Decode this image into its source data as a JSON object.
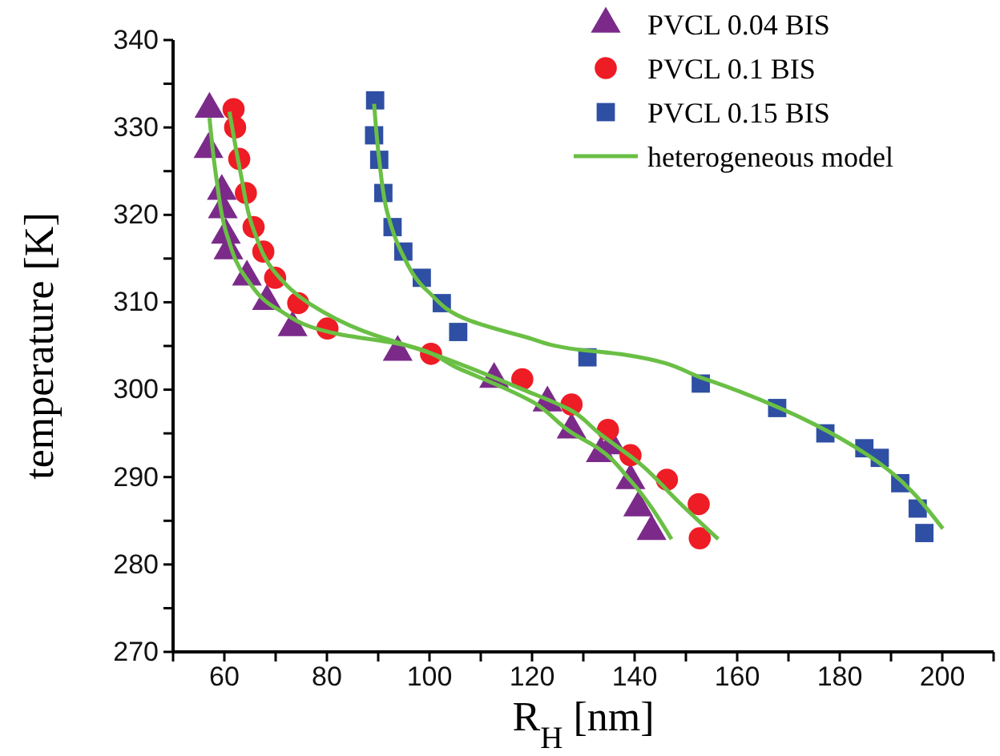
{
  "chart_data": {
    "type": "scatter",
    "xlabel": "R$_{H}$ [nm]",
    "ylabel": "temperature [K]",
    "xlim": [
      50,
      210
    ],
    "ylim": [
      270,
      340
    ],
    "xticks": [
      {
        "value": 50,
        "label": null
      },
      60,
      {
        "value": 70,
        "label": null
      },
      80,
      {
        "value": 90,
        "label": null
      },
      100,
      {
        "value": 110,
        "label": null
      },
      120,
      {
        "value": 130,
        "label": null
      },
      140,
      {
        "value": 150,
        "label": null
      },
      160,
      {
        "value": 170,
        "label": null
      },
      180,
      {
        "value": 190,
        "label": null
      },
      200,
      {
        "value": 210,
        "label": null
      }
    ],
    "yticks": [
      270,
      {
        "value": 275,
        "label": null
      },
      280,
      {
        "value": 285,
        "label": null
      },
      290,
      {
        "value": 295,
        "label": null
      },
      300,
      {
        "value": 305,
        "label": null
      },
      310,
      {
        "value": 315,
        "label": null
      },
      320,
      {
        "value": 325,
        "label": null
      },
      330,
      {
        "value": 335,
        "label": null
      },
      340
    ],
    "legend": "top right",
    "grid": false,
    "series": [
      {
        "name": "PVCL 0.04 BIS",
        "marker": "triangle",
        "color": "#7b2a8a",
        "x": [
          57.1,
          56.9,
          59.5,
          59.7,
          60.3,
          60.8,
          64.4,
          68.3,
          73.3,
          93.8,
          112.6,
          123.0,
          127.7,
          133.4,
          135.5,
          139.2,
          140.7,
          143.3
        ],
        "values": [
          332.1,
          327.5,
          322.7,
          320.6,
          317.7,
          315.9,
          312.9,
          310.1,
          307.1,
          304.3,
          301.2,
          298.5,
          295.4,
          292.7,
          293.6,
          289.6,
          286.5,
          283.8
        ]
      },
      {
        "name": "PVCL 0.1 BIS",
        "marker": "circle",
        "color": "#ee1c25",
        "x": [
          61.8,
          62.1,
          62.9,
          64.2,
          65.7,
          67.6,
          69.9,
          74.4,
          80.1,
          100.3,
          118.1,
          127.7,
          134.8,
          139.2,
          146.3,
          152.5,
          152.7
        ],
        "values": [
          332.1,
          330.0,
          326.4,
          322.5,
          318.6,
          315.8,
          312.8,
          309.9,
          307.0,
          304.1,
          301.2,
          298.3,
          295.4,
          292.5,
          289.7,
          286.9,
          283.0
        ]
      },
      {
        "name": "PVCL 0.15 BIS",
        "marker": "square",
        "color": "#2e4fa3",
        "x": [
          89.4,
          89.2,
          90.2,
          91.0,
          92.8,
          94.9,
          98.5,
          102.4,
          105.6,
          130.8,
          152.9,
          167.8,
          177.2,
          184.8,
          187.8,
          191.8,
          195.2,
          196.5
        ],
        "values": [
          333.1,
          329.1,
          326.3,
          322.5,
          318.6,
          315.8,
          312.8,
          309.9,
          306.6,
          303.7,
          300.7,
          297.9,
          295.0,
          293.3,
          292.2,
          289.3,
          286.4,
          283.6
        ]
      },
      {
        "name": "heterogeneous model",
        "type": "line",
        "marker": "none",
        "color": "#6abf45",
        "x": [
          57.1,
          58.4,
          60.5,
          64.2,
          70.4,
          81.9,
          94.4,
          105.8,
          120.4,
          127.7,
          132.9,
          139.2,
          147.2
        ],
        "values": [
          331.1,
          324.4,
          317.7,
          312.8,
          309.2,
          306.4,
          305.2,
          302.4,
          298.5,
          295.1,
          293.3,
          289.6,
          282.9
        ]
      },
      {
        "type": "line",
        "marker": "none",
        "color": "#6abf45",
        "x": [
          61.0,
          63.1,
          65.7,
          69.9,
          76.7,
          87.1,
          99.6,
          118.3,
          127.7,
          132.9,
          141.3,
          148.5,
          156.3
        ],
        "values": [
          331.8,
          325.0,
          318.3,
          313.4,
          309.8,
          306.7,
          304.3,
          300.0,
          297.6,
          295.1,
          291.4,
          287.2,
          282.9
        ]
      },
      {
        "type": "line",
        "marker": "none",
        "color": "#6abf45",
        "x": [
          89.2,
          90.2,
          91.8,
          94.4,
          99.6,
          107.9,
          118.3,
          128.8,
          138.1,
          153.8,
          168.3,
          185.0,
          200.1
        ],
        "values": [
          332.7,
          326.3,
          320.2,
          315.9,
          311.3,
          307.9,
          306.1,
          304.6,
          304.0,
          301.2,
          297.9,
          292.7,
          284.1
        ]
      }
    ]
  }
}
